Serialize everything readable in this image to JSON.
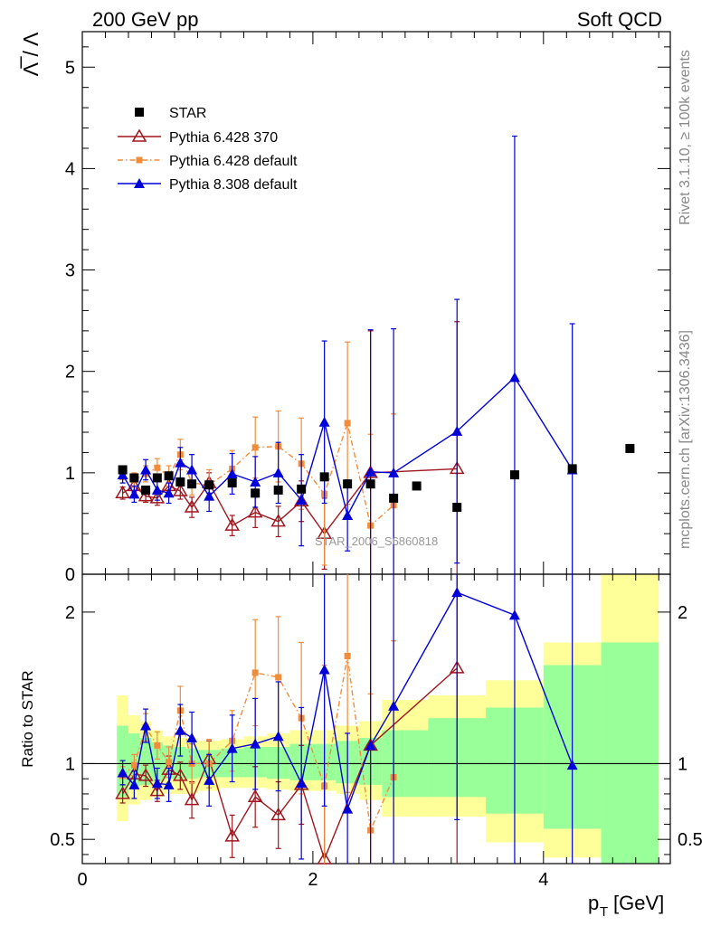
{
  "header": {
    "left": "200 GeV pp",
    "right": "Soft QCD"
  },
  "side_labels": {
    "rivet": "Rivet 3.1.10, ≥ 100k events",
    "mcplots": "mcplots.cern.ch [arXiv:1306.3436]"
  },
  "watermark": "STAR_2006_S6860818",
  "chart_data": [
    {
      "type": "scatter",
      "title": "",
      "ylabel": "Λ̅ / Λ",
      "xlim": [
        0,
        5.1
      ],
      "ylim": [
        0,
        5.35
      ],
      "xticks": [
        0,
        2,
        4
      ],
      "yticks": [
        0,
        1,
        2,
        3,
        4,
        5
      ],
      "legend": "top-left",
      "series": [
        {
          "name": "STAR",
          "color": "#000000",
          "marker": "square",
          "line": "none",
          "x": [
            0.35,
            0.45,
            0.55,
            0.65,
            0.75,
            0.85,
            0.95,
            1.1,
            1.3,
            1.5,
            1.7,
            1.9,
            2.1,
            2.3,
            2.5,
            2.7,
            2.9,
            3.25,
            3.75,
            4.25,
            4.75
          ],
          "y": [
            1.03,
            0.95,
            0.83,
            0.95,
            0.97,
            0.91,
            0.89,
            0.88,
            0.9,
            0.8,
            0.83,
            0.84,
            0.96,
            0.89,
            0.89,
            0.75,
            0.87,
            0.66,
            0.98,
            1.04,
            1.24
          ]
        },
        {
          "name": "Pythia 6.428 370",
          "color": "#a0161e",
          "marker": "open-triangle",
          "line": "solid",
          "x": [
            0.35,
            0.45,
            0.55,
            0.65,
            0.75,
            0.85,
            0.95,
            1.1,
            1.3,
            1.5,
            1.7,
            1.9,
            2.1,
            2.5,
            3.25
          ],
          "y": [
            0.8,
            0.87,
            0.77,
            0.75,
            0.87,
            0.82,
            0.66,
            0.9,
            0.48,
            0.61,
            0.52,
            0.72,
            0.4,
            1.0,
            1.04
          ],
          "err": [
            0.06,
            0.06,
            0.06,
            0.07,
            0.07,
            0.08,
            0.1,
            0.1,
            0.1,
            0.15,
            0.15,
            0.2,
            0.35,
            1.4,
            1.45
          ]
        },
        {
          "name": "Pythia 6.428 default",
          "color": "#f28c3a",
          "marker": "square-small",
          "line": "dashdot",
          "x": [
            0.35,
            0.45,
            0.55,
            0.65,
            0.75,
            0.85,
            0.95,
            1.1,
            1.3,
            1.5,
            1.7,
            1.9,
            2.1,
            2.3,
            2.5,
            2.7
          ],
          "y": [
            0.96,
            0.93,
            0.99,
            1.05,
            0.97,
            1.18,
            0.9,
            0.88,
            1.04,
            1.25,
            1.26,
            1.09,
            0.79,
            1.49,
            0.48,
            0.68
          ],
          "err": [
            0.06,
            0.07,
            0.08,
            0.09,
            0.1,
            0.15,
            0.12,
            0.15,
            0.18,
            0.3,
            0.35,
            0.45,
            0.7,
            0.8,
            0.9,
            0.9
          ]
        },
        {
          "name": "Pythia 8.308 default",
          "color": "#0000d8",
          "marker": "triangle",
          "line": "solid",
          "x": [
            0.35,
            0.45,
            0.55,
            0.65,
            0.75,
            0.85,
            0.95,
            1.1,
            1.3,
            1.5,
            1.7,
            1.9,
            2.1,
            2.3,
            2.5,
            2.7,
            3.25,
            3.75,
            4.25
          ],
          "y": [
            0.98,
            0.79,
            1.03,
            0.83,
            0.8,
            1.1,
            1.03,
            0.77,
            0.99,
            0.91,
            1.0,
            0.73,
            1.5,
            0.58,
            1.01,
            1.0,
            1.41,
            1.94,
            1.03
          ],
          "err": [
            0.08,
            0.08,
            0.1,
            0.1,
            0.1,
            0.15,
            0.15,
            0.15,
            0.2,
            0.25,
            0.3,
            0.45,
            0.8,
            0.35,
            1.4,
            1.42,
            1.3,
            2.38,
            1.44
          ]
        }
      ]
    },
    {
      "type": "scatter",
      "title": "",
      "ylabel": "Ratio to STAR",
      "xlabel": "p_T [GeV]",
      "xlabel_main": "p",
      "xlabel_sub": "T",
      "xlabel_unit": "[GeV]",
      "xlim": [
        0,
        5.1
      ],
      "ylim": [
        0.34,
        2.25
      ],
      "xticks": [
        0,
        2,
        4
      ],
      "yticks": [
        0.5,
        1,
        2
      ],
      "reference_line": 1,
      "bands": {
        "edges": [
          0.3,
          0.4,
          0.5,
          0.6,
          0.7,
          0.8,
          0.9,
          1.0,
          1.2,
          1.4,
          1.6,
          1.8,
          2.0,
          2.2,
          2.4,
          2.6,
          2.8,
          3.0,
          3.5,
          4.0,
          4.5,
          5.0
        ],
        "yellow_lo": [
          0.62,
          0.73,
          0.76,
          0.78,
          0.8,
          0.8,
          0.8,
          0.82,
          0.84,
          0.84,
          0.83,
          0.82,
          0.82,
          0.8,
          0.76,
          0.65,
          0.65,
          0.65,
          0.48,
          0.38,
          0.34
        ],
        "yellow_hi": [
          1.45,
          1.32,
          1.28,
          1.22,
          1.18,
          1.17,
          1.17,
          1.15,
          1.16,
          1.18,
          1.2,
          1.22,
          1.22,
          1.25,
          1.28,
          1.42,
          1.42,
          1.45,
          1.55,
          1.8,
          2.25
        ],
        "green_lo": [
          0.78,
          0.85,
          0.86,
          0.88,
          0.9,
          0.9,
          0.9,
          0.91,
          0.91,
          0.91,
          0.9,
          0.89,
          0.89,
          0.87,
          0.86,
          0.78,
          0.78,
          0.78,
          0.67,
          0.57,
          0.34
        ],
        "green_hi": [
          1.25,
          1.2,
          1.17,
          1.14,
          1.12,
          1.11,
          1.1,
          1.09,
          1.1,
          1.11,
          1.11,
          1.13,
          1.13,
          1.15,
          1.17,
          1.22,
          1.22,
          1.3,
          1.37,
          1.65,
          1.8
        ],
        "yellow_color": "#ffff99",
        "green_color": "#99ff99"
      },
      "series": [
        {
          "name": "Pythia 6.428 370",
          "color": "#a0161e",
          "marker": "open-triangle",
          "line": "solid",
          "x": [
            0.35,
            0.45,
            0.55,
            0.65,
            0.75,
            0.85,
            0.95,
            1.1,
            1.3,
            1.5,
            1.7,
            1.9,
            2.1,
            2.5,
            3.25
          ],
          "y": [
            0.8,
            0.93,
            0.92,
            0.82,
            0.96,
            0.92,
            0.76,
            1.03,
            0.52,
            0.78,
            0.66,
            0.86,
            0.37,
            1.12,
            1.63
          ],
          "err": [
            0.06,
            0.07,
            0.07,
            0.07,
            0.09,
            0.09,
            0.12,
            0.12,
            0.14,
            0.2,
            0.22,
            0.26,
            0.5,
            1.5,
            1.5
          ]
        },
        {
          "name": "Pythia 6.428 default",
          "color": "#f28c3a",
          "marker": "square-small",
          "line": "dashdot",
          "x": [
            0.35,
            0.45,
            0.55,
            0.65,
            0.75,
            0.85,
            0.95,
            1.1,
            1.3,
            1.5,
            1.7,
            1.9,
            2.1,
            2.3,
            2.5,
            2.7
          ],
          "y": [
            0.92,
            0.99,
            1.24,
            1.12,
            1.01,
            1.35,
            1.0,
            1.0,
            1.15,
            1.6,
            1.57,
            1.3,
            0.85,
            1.71,
            0.56,
            0.91
          ],
          "err": [
            0.06,
            0.07,
            0.09,
            0.09,
            0.1,
            0.16,
            0.13,
            0.16,
            0.2,
            0.35,
            0.4,
            0.5,
            0.8,
            0.9,
            0.9,
            0.9
          ]
        },
        {
          "name": "Pythia 8.308 default",
          "color": "#0000d8",
          "marker": "triangle",
          "line": "solid",
          "x": [
            0.35,
            0.45,
            0.55,
            0.65,
            0.75,
            0.85,
            0.95,
            1.1,
            1.3,
            1.5,
            1.7,
            1.9,
            2.1,
            2.3,
            2.5,
            2.7,
            3.25,
            3.75,
            4.25
          ],
          "y": [
            0.94,
            0.86,
            1.25,
            0.87,
            0.86,
            1.22,
            1.17,
            0.89,
            1.1,
            1.13,
            1.18,
            0.87,
            1.62,
            0.7,
            1.12,
            1.38,
            2.13,
            1.98,
            0.99
          ],
          "err": [
            0.08,
            0.09,
            0.11,
            0.1,
            0.11,
            0.17,
            0.17,
            0.17,
            0.22,
            0.3,
            0.36,
            0.5,
            0.9,
            0.5,
            1.5,
            1.5,
            1.5,
            2.5,
            1.5
          ]
        }
      ]
    }
  ]
}
